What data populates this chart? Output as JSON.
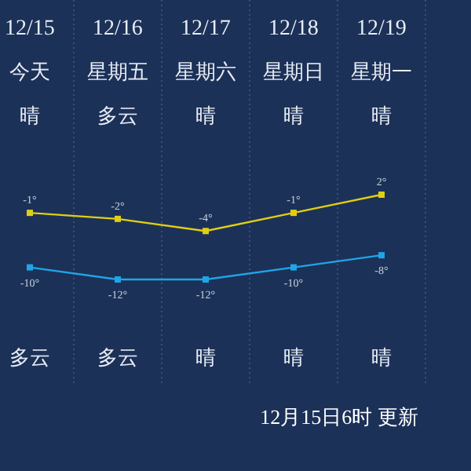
{
  "chart_data": {
    "type": "line",
    "categories": [
      "12/15",
      "12/16",
      "12/17",
      "12/18",
      "12/19"
    ],
    "series": [
      {
        "color": "#e0cf10",
        "values": [
          -1,
          -2,
          -4,
          -1,
          2
        ],
        "value_labels": [
          "-1°",
          "-2°",
          "-4°",
          "-1°",
          "2°"
        ]
      },
      {
        "color": "#1ea6e6",
        "values": [
          -10,
          -12,
          -12,
          -10,
          -8
        ],
        "value_labels": [
          "-10°",
          "-12°",
          "-12°",
          "-10°",
          "-8°"
        ]
      }
    ],
    "marker": "square",
    "grid": "x",
    "annotations": [
      "今天",
      "星期五",
      "星期六",
      "星期日",
      "星期一",
      "晴",
      "多云",
      "晴",
      "晴",
      "晴",
      "多云",
      "多云",
      "晴",
      "晴",
      "晴",
      "12月15日6时 更新"
    ]
  }
}
